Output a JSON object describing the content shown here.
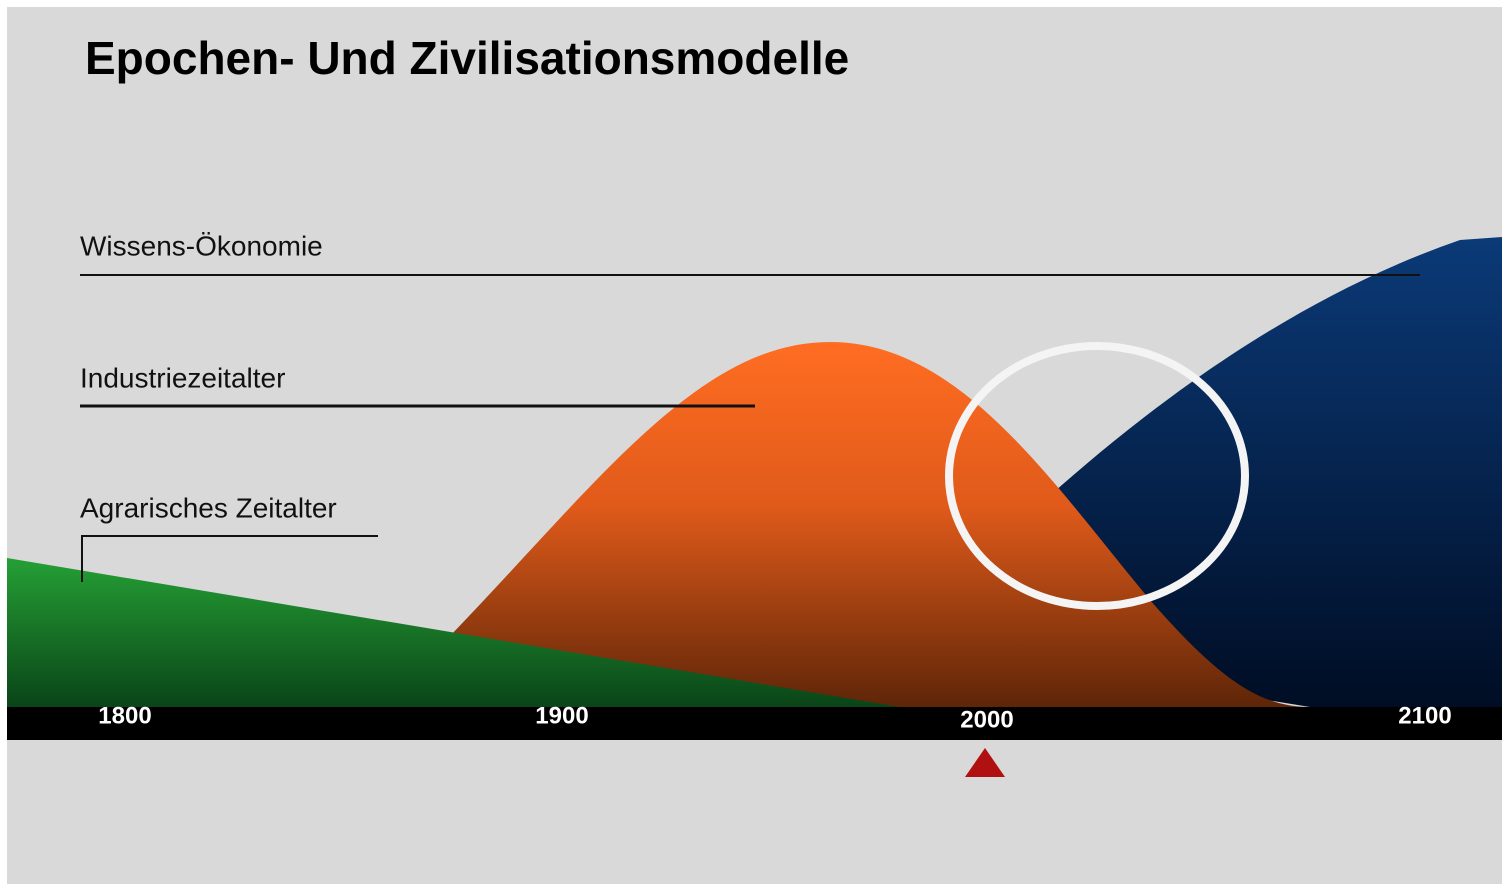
{
  "title": "Epochen- Und Zivilisationsmodelle",
  "epochs": [
    {
      "label": "Wissens-Ökonomie"
    },
    {
      "label": "Industriezeitalter"
    },
    {
      "label": "Agrarisches Zeitalter"
    }
  ],
  "timeline": [
    1800,
    1900,
    2000,
    2100
  ]
}
